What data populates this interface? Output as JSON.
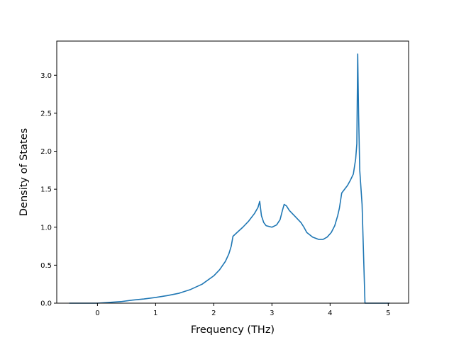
{
  "chart_data": {
    "type": "line",
    "title": "",
    "xlabel": "Frequency (THz)",
    "ylabel": "Density of States",
    "xlim": [
      -0.7,
      5.35
    ],
    "ylim": [
      0.0,
      3.45
    ],
    "xticks": [
      0,
      1,
      2,
      3,
      4,
      5
    ],
    "xtick_labels": [
      "0",
      "1",
      "2",
      "3",
      "4",
      "5"
    ],
    "yticks": [
      0.0,
      0.5,
      1.0,
      1.5,
      2.0,
      2.5,
      3.0
    ],
    "ytick_labels": [
      "0.0",
      "0.5",
      "1.0",
      "1.5",
      "2.0",
      "2.5",
      "3.0"
    ],
    "grid": false,
    "legend": "none",
    "series": [
      {
        "color": "#1f77b4",
        "x": [
          -0.48,
          0.0,
          0.2,
          0.4,
          0.6,
          0.8,
          1.0,
          1.2,
          1.4,
          1.6,
          1.8,
          2.0,
          2.1,
          2.2,
          2.26,
          2.3,
          2.33,
          2.4,
          2.5,
          2.6,
          2.7,
          2.76,
          2.79,
          2.82,
          2.86,
          2.9,
          3.0,
          3.08,
          3.14,
          3.18,
          3.21,
          3.25,
          3.3,
          3.4,
          3.5,
          3.55,
          3.6,
          3.7,
          3.8,
          3.88,
          3.95,
          4.02,
          4.08,
          4.13,
          4.16,
          4.2,
          4.3,
          4.35,
          4.4,
          4.44,
          4.46,
          4.475,
          4.49,
          4.51,
          4.55,
          4.6,
          5.02
        ],
        "y": [
          0.0,
          0.0,
          0.01,
          0.02,
          0.04,
          0.055,
          0.075,
          0.1,
          0.13,
          0.18,
          0.25,
          0.36,
          0.44,
          0.55,
          0.65,
          0.75,
          0.88,
          0.93,
          1.0,
          1.08,
          1.18,
          1.26,
          1.34,
          1.15,
          1.06,
          1.02,
          1.0,
          1.03,
          1.1,
          1.22,
          1.3,
          1.28,
          1.22,
          1.14,
          1.06,
          1.0,
          0.93,
          0.87,
          0.84,
          0.84,
          0.87,
          0.93,
          1.02,
          1.15,
          1.25,
          1.45,
          1.55,
          1.62,
          1.7,
          1.9,
          2.1,
          3.28,
          2.5,
          1.75,
          1.3,
          0.0,
          0.0
        ]
      }
    ]
  }
}
